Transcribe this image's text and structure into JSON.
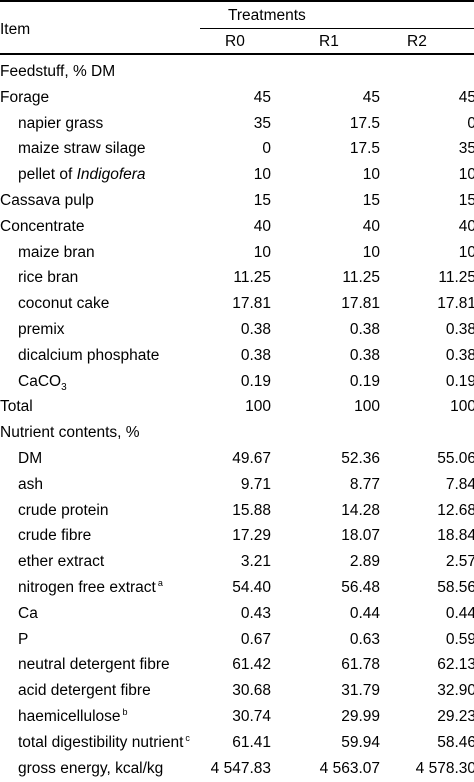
{
  "header": {
    "item": "Item",
    "treatments": "Treatments",
    "columns": [
      "R0",
      "R1",
      "R2"
    ]
  },
  "rows": [
    {
      "label": "Feedstuff, % DM",
      "indent": false,
      "values": [
        "",
        "",
        ""
      ]
    },
    {
      "label": "Forage",
      "indent": false,
      "values": [
        "45",
        "45",
        "45"
      ]
    },
    {
      "label": "napier grass",
      "indent": true,
      "values": [
        "35",
        "17.5",
        "0"
      ]
    },
    {
      "label": "maize straw silage",
      "indent": true,
      "values": [
        "0",
        "17.5",
        "35"
      ]
    },
    {
      "label_pre": "pellet of ",
      "label_em": "Indigofera",
      "indent": true,
      "values": [
        "10",
        "10",
        "10"
      ]
    },
    {
      "label": "Cassava pulp",
      "indent": false,
      "values": [
        "15",
        "15",
        "15"
      ]
    },
    {
      "label": "Concentrate",
      "indent": false,
      "values": [
        "40",
        "40",
        "40"
      ]
    },
    {
      "label": "maize bran",
      "indent": true,
      "values": [
        "10",
        "10",
        "10"
      ]
    },
    {
      "label": "rice bran",
      "indent": true,
      "values": [
        "11.25",
        "11.25",
        "11.25"
      ]
    },
    {
      "label": "coconut cake",
      "indent": true,
      "values": [
        "17.81",
        "17.81",
        "17.81"
      ]
    },
    {
      "label": "premix",
      "indent": true,
      "values": [
        "0.38",
        "0.38",
        "0.38"
      ]
    },
    {
      "label": "dicalcium phosphate",
      "indent": true,
      "values": [
        "0.38",
        "0.38",
        "0.38"
      ]
    },
    {
      "label_pre": "CaCO",
      "label_sub": "3",
      "indent": true,
      "values": [
        "0.19",
        "0.19",
        "0.19"
      ]
    },
    {
      "label": "Total",
      "indent": false,
      "values": [
        "100",
        "100",
        "100"
      ]
    },
    {
      "label": "Nutrient contents, %",
      "indent": false,
      "values": [
        "",
        "",
        ""
      ]
    },
    {
      "label": "DM",
      "indent": true,
      "values": [
        "49.67",
        "52.36",
        "55.06"
      ]
    },
    {
      "label": "ash",
      "indent": true,
      "values": [
        "9.71",
        "8.77",
        "7.84"
      ]
    },
    {
      "label": "crude protein",
      "indent": true,
      "values": [
        "15.88",
        "14.28",
        "12.68"
      ]
    },
    {
      "label": "crude fibre",
      "indent": true,
      "values": [
        "17.29",
        "18.07",
        "18.84"
      ]
    },
    {
      "label": "ether extract",
      "indent": true,
      "values": [
        "3.21",
        "2.89",
        "2.57"
      ]
    },
    {
      "label": "nitrogen free extract",
      "sup": "a",
      "indent": true,
      "values": [
        "54.40",
        "56.48",
        "58.56"
      ]
    },
    {
      "label": "Ca",
      "indent": true,
      "values": [
        "0.43",
        "0.44",
        "0.44"
      ]
    },
    {
      "label": "P",
      "indent": true,
      "values": [
        "0.67",
        "0.63",
        "0.59"
      ]
    },
    {
      "label": "neutral detergent fibre",
      "indent": true,
      "values": [
        "61.42",
        "61.78",
        "62.13"
      ]
    },
    {
      "label": "acid detergent fibre",
      "indent": true,
      "values": [
        "30.68",
        "31.79",
        "32.90"
      ]
    },
    {
      "label": "haemicellulose",
      "sup": "b",
      "indent": true,
      "values": [
        "30.74",
        "29.99",
        "29.23"
      ]
    },
    {
      "label": "total digestibility nutrient",
      "sup": "c",
      "indent": true,
      "values": [
        "61.41",
        "59.94",
        "58.46"
      ]
    },
    {
      "label": "gross energy, kcal/kg",
      "indent": true,
      "values": [
        "4 547.83",
        "4 563.07",
        "4 578.30"
      ]
    }
  ]
}
